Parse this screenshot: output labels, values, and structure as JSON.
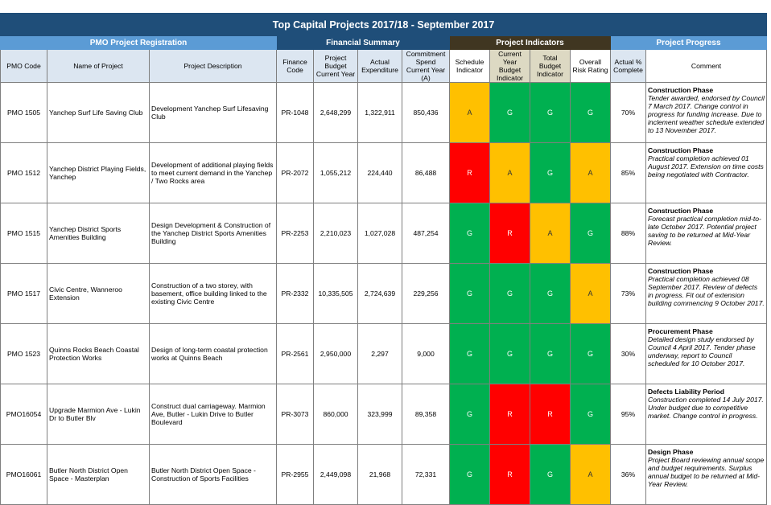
{
  "title": "Top Capital Projects 2017/18 - September 2017",
  "sections": {
    "pmo": "PMO Project Registration",
    "financial": "Financial Summary",
    "indicators": "Project Indicators",
    "progress": "Project Progress"
  },
  "headers": {
    "pmo_code": "PMO Code",
    "name": "Name of Project",
    "description": "Project Description",
    "finance_code": "Finance Code",
    "budget": "Project Budget Current Year",
    "actual": "Actual Expenditure",
    "commitment": "Commitment Spend Current Year (A)",
    "schedule": "Schedule Indicator",
    "cy_budget": "Current Year Budget Indicator",
    "total_budget": "Total Budget Indicator",
    "risk": "Overall Risk Rating",
    "complete": "Actual % Complete",
    "comment": "Comment"
  },
  "indicator_colors": {
    "G": "#00b050",
    "R": "#ff0000",
    "A": "#ffc000"
  },
  "rows": [
    {
      "code": "PMO 1505",
      "name": "Yanchep Surf Life Saving Club",
      "description": "Development Yanchep Surf Lifesaving Club",
      "finance_code": "PR-1048",
      "budget": "2,648,299",
      "actual": "1,322,911",
      "commitment": "850,436",
      "schedule": "A",
      "cy_budget": "G",
      "total_budget": "G",
      "risk": "G",
      "complete": "70%",
      "phase": "Construction Phase",
      "comment": "Tender awarded, endorsed by Council 7 March 2017. Change control in progress for funding increase. Due to inclement weather schedule extended to 13 November 2017."
    },
    {
      "code": "PMO 1512",
      "name": "Yanchep District Playing Fields, Yanchep",
      "description": "Development of additional playing fields to meet current demand in the Yanchep / Two Rocks area",
      "finance_code": "PR-2072",
      "budget": "1,055,212",
      "actual": "224,440",
      "commitment": "86,488",
      "schedule": "R",
      "cy_budget": "A",
      "total_budget": "G",
      "risk": "A",
      "complete": "85%",
      "phase": "Construction Phase",
      "comment": "Practical completion achieved 01 August 2017. Extension on time costs being negotiated with Contractor."
    },
    {
      "code": "PMO 1515",
      "name": "Yanchep District Sports Amenities Building",
      "description": "Design Development & Construction of the Yanchep District Sports Amenities Building",
      "finance_code": "PR-2253",
      "budget": "2,210,023",
      "actual": "1,027,028",
      "commitment": "487,254",
      "schedule": "G",
      "cy_budget": "R",
      "total_budget": "A",
      "risk": "G",
      "complete": "88%",
      "phase": "Construction Phase",
      "comment": "Forecast practical completion mid-to-late October 2017. Potential project saving to be returned at Mid-Year Review."
    },
    {
      "code": "PMO 1517",
      "name": "Civic Centre, Wanneroo Extension",
      "description": "Construction of a two storey, with basement, office building linked to the existing Civic Centre",
      "finance_code": "PR-2332",
      "budget": "10,335,505",
      "actual": "2,724,639",
      "commitment": "229,256",
      "schedule": "G",
      "cy_budget": "G",
      "total_budget": "G",
      "risk": "A",
      "complete": "73%",
      "phase": "Construction Phase",
      "comment": "Practical completion achieved 08 September 2017. Review of defects in progress. Fit out of extension building commencing 9 October 2017."
    },
    {
      "code": "PMO 1523",
      "name": "Quinns Rocks Beach Coastal Protection Works",
      "description": "Design of long-term coastal protection works at Quinns Beach",
      "finance_code": "PR-2561",
      "budget": "2,950,000",
      "actual": "2,297",
      "commitment": "9,000",
      "schedule": "G",
      "cy_budget": "G",
      "total_budget": "G",
      "risk": "G",
      "complete": "30%",
      "phase": "Procurement Phase",
      "comment": "Detailed design study endorsed by Council 4 April 2017. Tender phase underway, report to Council scheduled for 10 October 2017."
    },
    {
      "code": "PMO16054",
      "name": "Upgrade Marmion Ave - Lukin Dr to Butler Blv",
      "description": "Construct dual carriageway. Marmion Ave, Butler - Lukin Drive to Butler Boulevard",
      "finance_code": "PR-3073",
      "budget": "860,000",
      "actual": "323,999",
      "commitment": "89,358",
      "schedule": "G",
      "cy_budget": "R",
      "total_budget": "R",
      "risk": "G",
      "complete": "95%",
      "phase": "Defects Liability Period",
      "comment": "Construction completed 14 July 2017. Under budget due to competitive market. Change control in progress."
    },
    {
      "code": "PMO16061",
      "name": "Butler North District Open Space - Masterplan",
      "description": "Butler North District Open Space - Construction of Sports Facilities",
      "finance_code": "PR-2955",
      "budget": "2,449,098",
      "actual": "21,968",
      "commitment": "72,331",
      "schedule": "G",
      "cy_budget": "R",
      "total_budget": "G",
      "risk": "A",
      "complete": "36%",
      "phase": "Design Phase",
      "comment": "Project Board reviewing annual scope and budget requirements. Surplus annual budget to be returned at Mid-Year Review."
    }
  ]
}
